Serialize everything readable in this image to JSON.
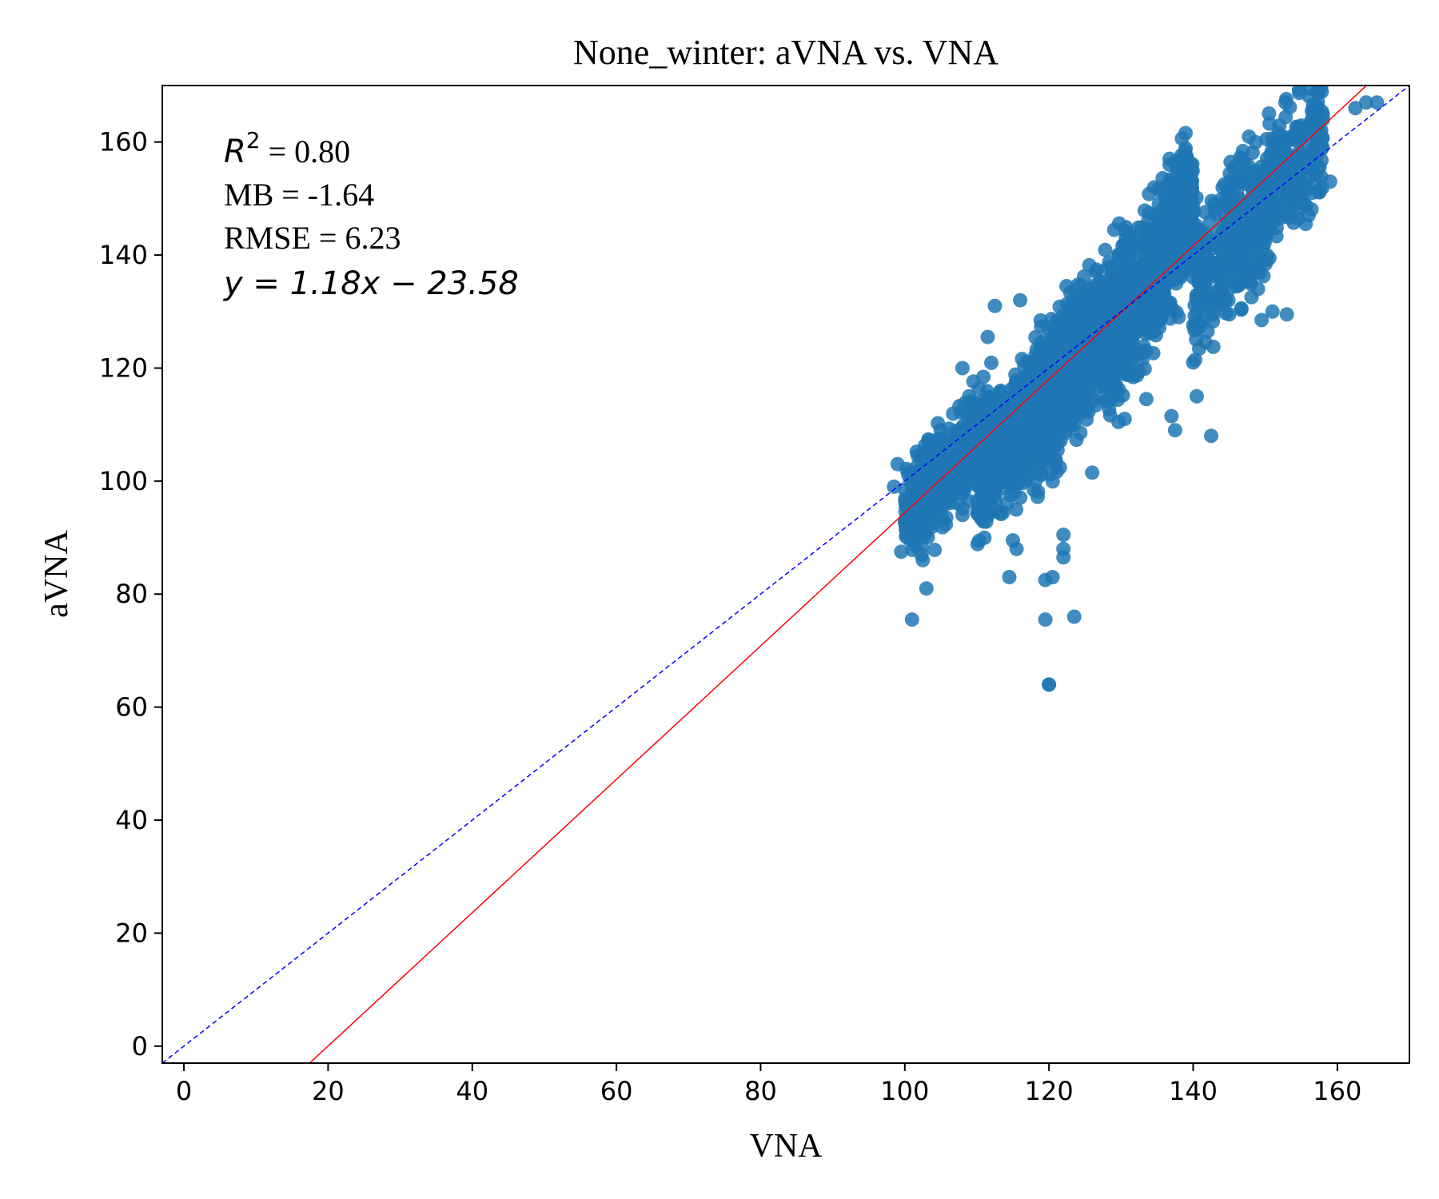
{
  "chart_data": {
    "type": "scatter",
    "title": "None_winter: aVNA vs. VNA",
    "xlabel": "VNA",
    "ylabel": "aVNA",
    "xlim": [
      -3,
      170
    ],
    "ylim": [
      -3,
      170
    ],
    "xticks": [
      0,
      20,
      40,
      60,
      80,
      100,
      120,
      140,
      160
    ],
    "yticks": [
      0,
      20,
      40,
      60,
      80,
      100,
      120,
      140,
      160
    ],
    "grid": false,
    "point_color": "#1f77b4",
    "annotations": {
      "r2_label": "R",
      "r2_sup": "2",
      "r2_value": " = 0.80",
      "mb": "MB = -1.64",
      "rmse": "RMSE = 6.23",
      "equation": "y = 1.18x − 23.58"
    },
    "fit_line": {
      "slope": 1.18,
      "intercept": -23.58,
      "color": "#ff0000",
      "style": "solid"
    },
    "identity_line": {
      "slope": 1,
      "intercept": 0,
      "color": "#0000ff",
      "style": "dashed"
    },
    "clusters": [
      {
        "x": [
          100,
          112
        ],
        "y": [
          94,
          110
        ],
        "n": 550
      },
      {
        "x": [
          110,
          125
        ],
        "y": [
          100,
          125
        ],
        "n": 750
      },
      {
        "x": [
          118,
          132
        ],
        "y": [
          110,
          135
        ],
        "n": 700
      },
      {
        "x": [
          128,
          140
        ],
        "y": [
          122,
          150
        ],
        "n": 700
      },
      {
        "x": [
          140,
          158
        ],
        "y": [
          135,
          162
        ],
        "n": 550
      }
    ],
    "outliers": [
      [
        99.5,
        87.5
      ],
      [
        102.5,
        86
      ],
      [
        103,
        81
      ],
      [
        101,
        75.5
      ],
      [
        114.5,
        83
      ],
      [
        115,
        89.5
      ],
      [
        115.5,
        88
      ],
      [
        119.5,
        82.5
      ],
      [
        120.5,
        83
      ],
      [
        122,
        88
      ],
      [
        122,
        86.5
      ],
      [
        122,
        90.5
      ],
      [
        119.5,
        75.5
      ],
      [
        123.5,
        76
      ],
      [
        120,
        64
      ],
      [
        120,
        64
      ],
      [
        126,
        101.5
      ],
      [
        130.5,
        111
      ],
      [
        133.5,
        114.5
      ],
      [
        137,
        111.5
      ],
      [
        137.5,
        109
      ],
      [
        140.5,
        115
      ],
      [
        142.5,
        108
      ],
      [
        140,
        121
      ],
      [
        142,
        126.5
      ],
      [
        145,
        129.5
      ],
      [
        149.5,
        128.5
      ],
      [
        151,
        130
      ],
      [
        153,
        129.5
      ],
      [
        149,
        134
      ],
      [
        156,
        147
      ],
      [
        159,
        153
      ],
      [
        164,
        167
      ],
      [
        165.5,
        167
      ],
      [
        162.5,
        166
      ],
      [
        158,
        164
      ],
      [
        156,
        156
      ],
      [
        152,
        150
      ],
      [
        147,
        141
      ],
      [
        145.5,
        137.5
      ],
      [
        144.5,
        132
      ],
      [
        138,
        129
      ],
      [
        135,
        128
      ],
      [
        113,
        94.5
      ],
      [
        108,
        94
      ],
      [
        104.5,
        93.5
      ],
      [
        98.5,
        99
      ],
      [
        99,
        103
      ],
      [
        112.5,
        131
      ],
      [
        116,
        132
      ],
      [
        111.5,
        125.5
      ],
      [
        108,
        120
      ]
    ]
  }
}
